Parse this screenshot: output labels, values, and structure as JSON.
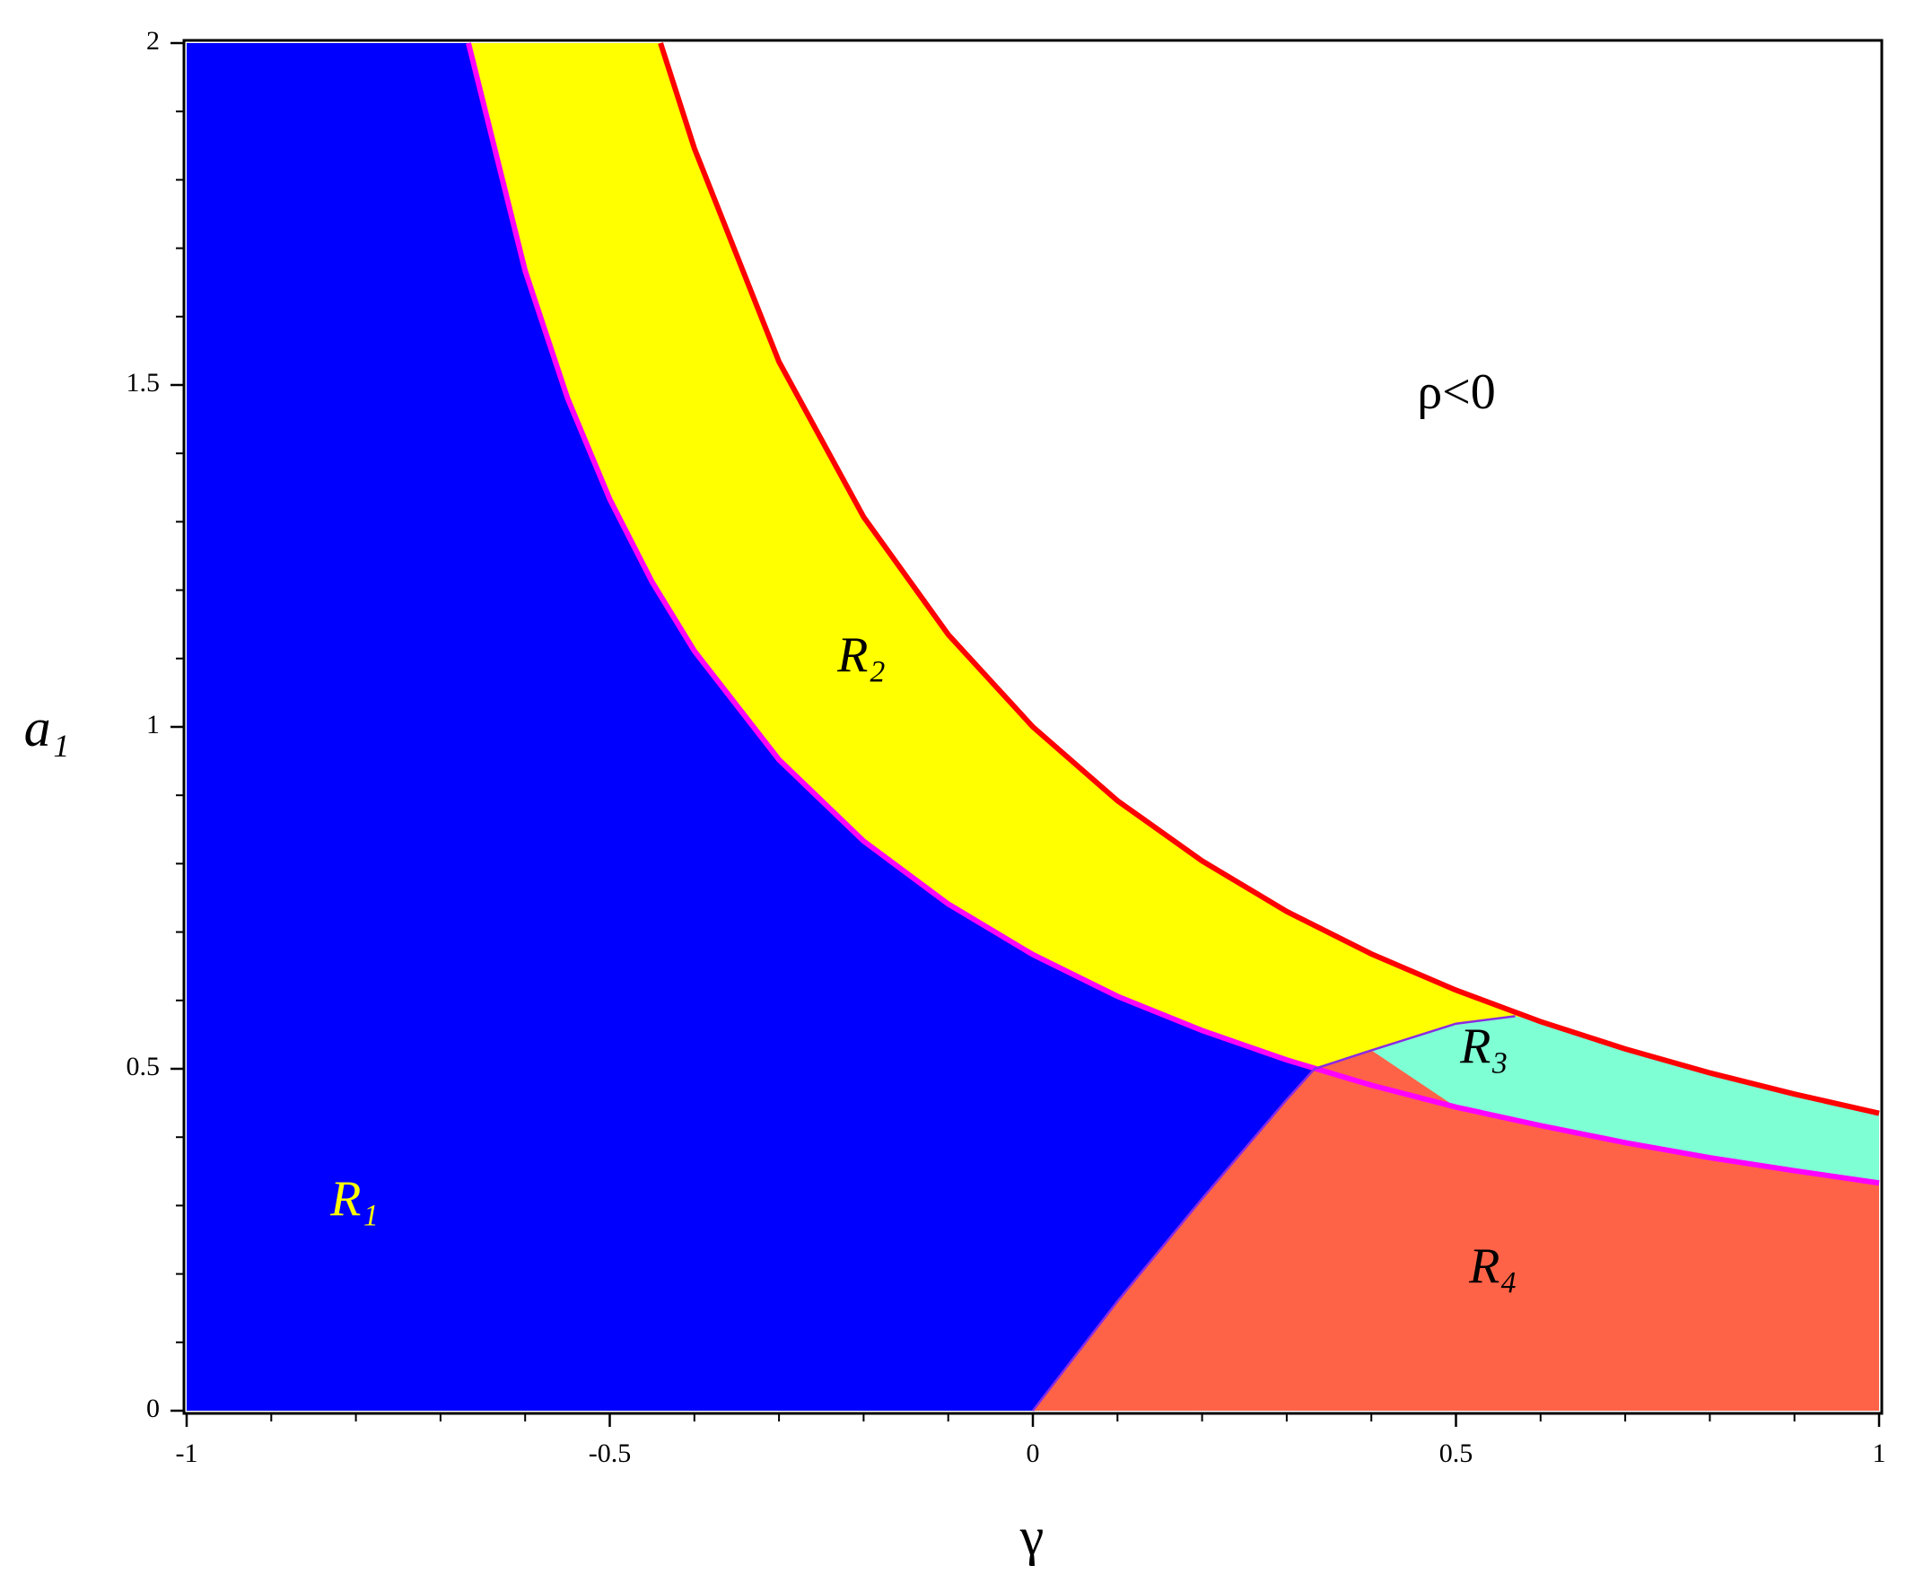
{
  "chart_data": {
    "type": "region",
    "x_label": "γ",
    "y_label": "a₁",
    "annotation": "ρ<0",
    "xlim": [
      -1,
      1
    ],
    "ylim": [
      0,
      2
    ],
    "xticks": [
      -1,
      -0.5,
      0,
      0.5,
      1
    ],
    "yticks": [
      0,
      0.5,
      1,
      1.5,
      2
    ],
    "series": [
      {
        "color": "#ff0000",
        "x": [
          -0.44,
          -0.4,
          -0.3,
          -0.2,
          -0.1,
          0,
          0.1,
          0.2,
          0.3,
          0.4,
          0.5,
          0.6,
          0.7,
          0.8,
          0.9,
          1
        ],
        "values": [
          2.0,
          1.846,
          1.534,
          1.307,
          1.135,
          1.0,
          0.892,
          0.804,
          0.73,
          0.668,
          0.615,
          0.569,
          0.529,
          0.494,
          0.463,
          0.435
        ]
      },
      {
        "color": "#ff00ff",
        "x": [
          -0.667,
          -0.6,
          -0.55,
          -0.5,
          -0.45,
          -0.4,
          -0.3,
          -0.2,
          -0.1,
          0,
          0.1,
          0.2,
          0.3,
          0.4,
          0.5,
          0.6,
          0.7,
          0.8,
          0.9,
          1
        ],
        "values": [
          2.0,
          1.667,
          1.481,
          1.333,
          1.212,
          1.111,
          0.952,
          0.833,
          0.741,
          0.667,
          0.606,
          0.556,
          0.513,
          0.476,
          0.444,
          0.417,
          0.392,
          0.37,
          0.351,
          0.333
        ]
      },
      {
        "color": "#8a2be2",
        "x": [
          0,
          0.1,
          0.2,
          0.3,
          0.333,
          0.4,
          0.5,
          0.57
        ],
        "values": [
          0,
          0.16,
          0.31,
          0.455,
          0.5,
          0.527,
          0.566,
          0.577
        ]
      }
    ],
    "regions": [
      {
        "label": "R₁",
        "color": "#0000ff",
        "label_color": "#ffff00"
      },
      {
        "label": "R₂",
        "color": "#ffff00",
        "label_color": "#000000"
      },
      {
        "label": "R₃",
        "color": "#7fffd4",
        "label_color": "#000000"
      },
      {
        "label": "R₄",
        "color": "#ff6347",
        "label_color": "#000000"
      }
    ]
  }
}
